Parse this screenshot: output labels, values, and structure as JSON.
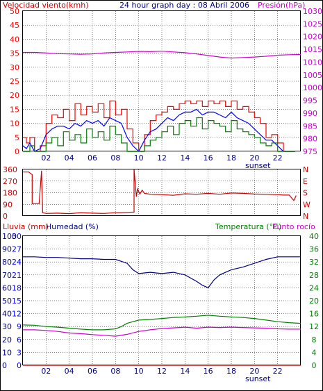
{
  "colors": {
    "frame": "#000000",
    "grid": "#000000",
    "hour_label": "#000080",
    "sunset_label": "#000080",
    "wind_gust": "#ff0000",
    "wind_avg": "#0000ff",
    "wind_min": "#008000",
    "pressure": "#cc00cc",
    "direction": "#cc0000",
    "humidity": "#000080",
    "temperature": "#008000",
    "dewpoint": "#cc00cc",
    "rain": "#cc0000",
    "rain_axis": "#0000ff",
    "humidity_axis": "#000080",
    "temp_axis": "#008000"
  },
  "chart_data": [
    {
      "type": "line",
      "title": "24 hour graph day : 08 Abril 2006",
      "left_label": "Velocidad viento(kmh)",
      "right_label": "Presión(hPa)",
      "x_ticks": [
        "02",
        "04",
        "06",
        "08",
        "10",
        "12",
        "14",
        "16",
        "18",
        "20",
        "22"
      ],
      "sunset_label": "sunset",
      "xlim": [
        0,
        24
      ],
      "ylim_left": [
        0,
        50
      ],
      "y_ticks_left": [
        "0",
        "5",
        "10",
        "15",
        "20",
        "25",
        "30",
        "35",
        "40",
        "45",
        "50"
      ],
      "ylim_right": [
        975,
        1030
      ],
      "y_ticks_right": [
        "975",
        "980",
        "985",
        "990",
        "995",
        "1000",
        "1005",
        "1010",
        "1015",
        "1020",
        "1025",
        "1030"
      ],
      "grid": true,
      "series": [
        {
          "role": "wind_gust",
          "axis": "left",
          "x": [
            0,
            0.3,
            0.6,
            1.0,
            1.5,
            2.0,
            2.5,
            3.0,
            3.5,
            4.0,
            4.5,
            5.0,
            5.5,
            6.0,
            6.5,
            7.0,
            7.5,
            8.0,
            8.5,
            9.0,
            9.5,
            10.0,
            10.5,
            11.0,
            11.5,
            12.0,
            12.5,
            13.0,
            13.5,
            14.0,
            14.5,
            15.0,
            15.5,
            16.0,
            16.5,
            17.0,
            17.5,
            18.0,
            18.5,
            19.0,
            19.5,
            20.0,
            20.5,
            21.0,
            21.5,
            22.0,
            22.5,
            23.0,
            23.5
          ],
          "y": [
            5,
            3,
            5,
            0,
            2,
            10,
            13,
            12,
            15,
            11,
            17,
            13,
            16,
            14,
            17,
            12,
            18,
            13,
            15,
            8,
            3,
            0,
            6,
            11,
            13,
            14,
            16,
            15,
            17,
            18,
            17,
            18,
            16,
            18,
            17,
            18,
            16,
            18,
            15,
            16,
            14,
            12,
            10,
            5,
            6,
            3,
            0,
            0,
            0
          ]
        },
        {
          "role": "wind_avg",
          "axis": "left",
          "x": [
            0,
            0.3,
            0.6,
            1.0,
            1.5,
            2.0,
            2.5,
            3.0,
            3.5,
            4.0,
            4.5,
            5.0,
            5.5,
            6.0,
            6.5,
            7.0,
            7.5,
            8.0,
            8.5,
            9.0,
            9.5,
            10.0,
            10.5,
            11.0,
            11.5,
            12.0,
            12.5,
            13.0,
            13.5,
            14.0,
            14.5,
            15.0,
            15.5,
            16.0,
            16.5,
            17.0,
            17.5,
            18.0,
            18.5,
            19.0,
            19.5,
            20.0,
            20.5,
            21.0,
            21.5,
            22.0,
            22.5,
            23.0,
            23.5
          ],
          "y": [
            2,
            1,
            3,
            0,
            1,
            6,
            8,
            9,
            9,
            8,
            10,
            9,
            11,
            10,
            11,
            9,
            12,
            11,
            10,
            5,
            2,
            0,
            4,
            7,
            8,
            10,
            12,
            11,
            13,
            14,
            14,
            15,
            13,
            14,
            14,
            13,
            12,
            14,
            12,
            11,
            10,
            8,
            6,
            4,
            4,
            2,
            0,
            0,
            0
          ]
        },
        {
          "role": "wind_min",
          "axis": "left",
          "x": [
            0,
            0.3,
            0.6,
            1.0,
            1.5,
            2.0,
            2.5,
            3.0,
            3.5,
            4.0,
            4.5,
            5.0,
            5.5,
            6.0,
            6.5,
            7.0,
            7.5,
            8.0,
            8.5,
            9.0,
            9.5,
            10.0,
            10.5,
            11.0,
            11.5,
            12.0,
            12.5,
            13.0,
            13.5,
            14.0,
            14.5,
            15.0,
            15.5,
            16.0,
            16.5,
            17.0,
            17.5,
            18.0,
            18.5,
            19.0,
            19.5,
            20.0,
            20.5,
            21.0,
            21.5,
            22.0,
            22.5,
            23.0,
            23.5
          ],
          "y": [
            0,
            0,
            2,
            0,
            0,
            3,
            5,
            2,
            7,
            4,
            6,
            3,
            8,
            5,
            7,
            4,
            9,
            6,
            3,
            0,
            0,
            0,
            2,
            4,
            5,
            7,
            9,
            6,
            10,
            11,
            9,
            12,
            8,
            11,
            10,
            9,
            7,
            11,
            8,
            7,
            6,
            5,
            3,
            2,
            3,
            0,
            0,
            0,
            0
          ]
        },
        {
          "role": "pressure",
          "axis": "right",
          "x": [
            0,
            1,
            2,
            3,
            4,
            5,
            6,
            7,
            8,
            9,
            10,
            11,
            12,
            13,
            14,
            15,
            16,
            17,
            18,
            19,
            20,
            21,
            22,
            23,
            24
          ],
          "y": [
            1013.8,
            1013.8,
            1013.6,
            1013.3,
            1013.2,
            1013.1,
            1013.2,
            1013.6,
            1013.8,
            1014.0,
            1014.2,
            1014.1,
            1014.3,
            1014.0,
            1013.7,
            1013.2,
            1012.6,
            1012.0,
            1011.6,
            1011.8,
            1012.0,
            1012.3,
            1012.7,
            1012.9,
            1013.0
          ]
        }
      ]
    },
    {
      "type": "line",
      "x_ticks": [
        "02",
        "04",
        "06",
        "08",
        "10",
        "12",
        "14",
        "16",
        "18",
        "20",
        "22"
      ],
      "xlim": [
        0,
        24
      ],
      "ylim": [
        0,
        360
      ],
      "y_ticks": [
        "0",
        "90",
        "180",
        "270",
        "360"
      ],
      "right_labels": [
        "N",
        "W",
        "S",
        "E",
        "N"
      ],
      "grid": true,
      "series": [
        {
          "role": "direction",
          "x": [
            0,
            0.5,
            0.8,
            0.8,
            1.4,
            1.6,
            1.6,
            1.7,
            1.7,
            2,
            3,
            4,
            5,
            6,
            7,
            8,
            9,
            9.6,
            9.6,
            9.8,
            9.9,
            10.1,
            10.3,
            10.5,
            11,
            12,
            13,
            14,
            15,
            16,
            17,
            18,
            19,
            20,
            21,
            22,
            22.5,
            23,
            23.4,
            23.6
          ],
          "y": [
            340,
            340,
            320,
            95,
            95,
            340,
            350,
            60,
            25,
            20,
            22,
            18,
            25,
            22,
            20,
            25,
            28,
            30,
            360,
            150,
            210,
            170,
            200,
            175,
            168,
            165,
            160,
            172,
            168,
            175,
            168,
            178,
            175,
            170,
            168,
            165,
            162,
            162,
            120,
            158
          ]
        }
      ]
    },
    {
      "type": "line",
      "left_label_1": "Lluvia (mm)",
      "left_label_2": "Humedad (%)",
      "right_label_1": "Temperatura (°C)",
      "right_label_2": "Punto rocío",
      "x_ticks": [
        "02",
        "04",
        "06",
        "08",
        "10",
        "12",
        "14",
        "16",
        "18",
        "20",
        "22"
      ],
      "sunset_label": "sunset",
      "xlim": [
        0,
        24
      ],
      "rain_ticks": [
        "0",
        "3",
        "6",
        "9",
        "12",
        "15",
        "18",
        "21",
        "24",
        "27",
        "30"
      ],
      "humidity_ticks": [
        "0",
        "10",
        "20",
        "30",
        "40",
        "50",
        "60",
        "70",
        "80",
        "90",
        "100"
      ],
      "temp_ticks": [
        "0",
        "4",
        "8",
        "12",
        "16",
        "20",
        "24",
        "28",
        "32",
        "36",
        "40"
      ],
      "ylim_humidity": [
        0,
        100
      ],
      "ylim_temp": [
        0,
        40
      ],
      "grid": true,
      "series": [
        {
          "role": "humidity",
          "axis": "humidity",
          "x": [
            0,
            1,
            2,
            3,
            4,
            5,
            6,
            7,
            8,
            9,
            9.5,
            10,
            11,
            12,
            13,
            14,
            15,
            15.5,
            16,
            16.5,
            17,
            18,
            19,
            20,
            21,
            22,
            23,
            24
          ],
          "y": [
            84,
            84,
            83.5,
            83.5,
            83,
            82.5,
            82.5,
            82,
            82,
            79,
            74,
            71,
            72,
            71,
            72,
            70,
            65,
            62,
            60,
            66,
            70,
            74,
            76,
            79,
            82,
            84,
            84,
            84
          ]
        },
        {
          "role": "temperature",
          "axis": "temp",
          "x": [
            0,
            1,
            2,
            3,
            4,
            5,
            6,
            7,
            8,
            8.5,
            9,
            9.5,
            10,
            11,
            12,
            13,
            14,
            15,
            16,
            17,
            18,
            19,
            20,
            21,
            22,
            23,
            24
          ],
          "y": [
            12.5,
            12.4,
            12.0,
            11.8,
            11.5,
            11.2,
            11.0,
            11.0,
            11.3,
            12.0,
            13.0,
            13.5,
            14.0,
            14.2,
            14.5,
            14.8,
            15.0,
            15.2,
            15.5,
            15.2,
            15.0,
            14.8,
            14.5,
            14.0,
            13.5,
            13.2,
            13.0
          ]
        },
        {
          "role": "dewpoint",
          "axis": "temp",
          "x": [
            0,
            1,
            2,
            3,
            4,
            5,
            6,
            7,
            8,
            9,
            10,
            11,
            12,
            13,
            14,
            15,
            16,
            17,
            18,
            19,
            20,
            21,
            22,
            23,
            24
          ],
          "y": [
            11.0,
            11.0,
            10.8,
            10.5,
            10.0,
            9.8,
            9.5,
            9.3,
            9.0,
            9.6,
            10.5,
            11.0,
            11.4,
            11.6,
            11.8,
            11.5,
            11.8,
            11.7,
            11.8,
            11.7,
            11.6,
            11.5,
            11.3,
            11.2,
            11.2
          ]
        },
        {
          "role": "rain",
          "axis": "humidity",
          "x": [
            0,
            24
          ],
          "y": [
            0,
            0
          ]
        }
      ]
    }
  ]
}
